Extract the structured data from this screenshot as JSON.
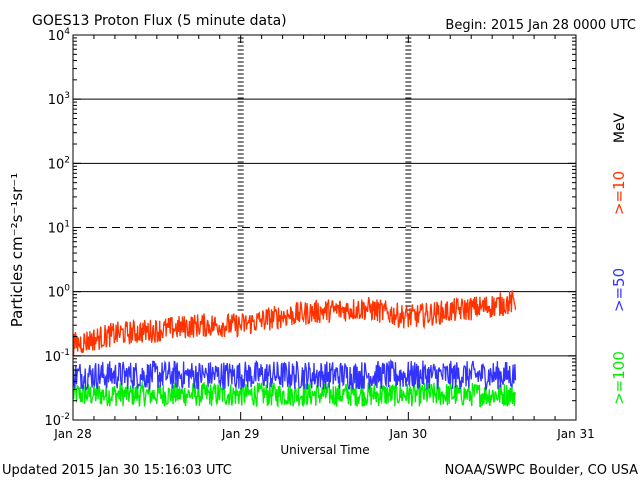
{
  "chart_data": {
    "type": "line",
    "title": "GOES13 Proton Flux (5 minute data)",
    "begin": "Begin: 2015 Jan 28 0000 UTC",
    "ylabel": "Particles cm⁻²s⁻¹sr⁻¹",
    "xlabel": "Universal Time",
    "y_scale": "log",
    "ylim": [
      0.01,
      10000
    ],
    "y_ticks": [
      {
        "value": 10000,
        "base": "10",
        "exp": "4"
      },
      {
        "value": 1000,
        "base": "10",
        "exp": "3"
      },
      {
        "value": 100,
        "base": "10",
        "exp": "2"
      },
      {
        "value": 10,
        "base": "10",
        "exp": "1"
      },
      {
        "value": 1,
        "base": "10",
        "exp": "0"
      },
      {
        "value": 0.1,
        "base": "10",
        "exp": "-1"
      },
      {
        "value": 0.01,
        "base": "10",
        "exp": "-2"
      }
    ],
    "x_range_days": [
      0,
      3
    ],
    "x_ticks": [
      {
        "day": 0,
        "label": "Jan 28"
      },
      {
        "day": 1,
        "label": "Jan 29"
      },
      {
        "day": 2,
        "label": "Jan 30"
      },
      {
        "day": 3,
        "label": "Jan 31"
      }
    ],
    "legend_unit": "MeV",
    "data_end_day": 2.64,
    "series": [
      {
        "name": ">=10",
        "color": "#ff3300",
        "x": [
          0,
          0.25,
          0.5,
          0.75,
          1.0,
          1.25,
          1.5,
          1.75,
          2.0,
          2.25,
          2.5,
          2.64
        ],
        "y": [
          0.15,
          0.22,
          0.25,
          0.3,
          0.3,
          0.42,
          0.5,
          0.55,
          0.4,
          0.5,
          0.6,
          0.7
        ]
      },
      {
        "name": ">=50",
        "color": "#3333ff",
        "x": [
          0,
          0.5,
          1.0,
          1.5,
          2.0,
          2.64
        ],
        "y": [
          0.05,
          0.05,
          0.05,
          0.05,
          0.05,
          0.05
        ]
      },
      {
        "name": ">=100",
        "color": "#00ee00",
        "x": [
          0,
          0.5,
          1.0,
          1.5,
          2.0,
          2.64
        ],
        "y": [
          0.025,
          0.025,
          0.025,
          0.025,
          0.025,
          0.025
        ]
      }
    ],
    "grid": "solid at 10^3, 10^2, 10^0, 10^-1; dashed at 10^1; dotted day markers"
  },
  "footer": {
    "updated": "Updated 2015 Jan 30 15:16:03 UTC",
    "credit": "NOAA/SWPC Boulder, CO USA"
  }
}
